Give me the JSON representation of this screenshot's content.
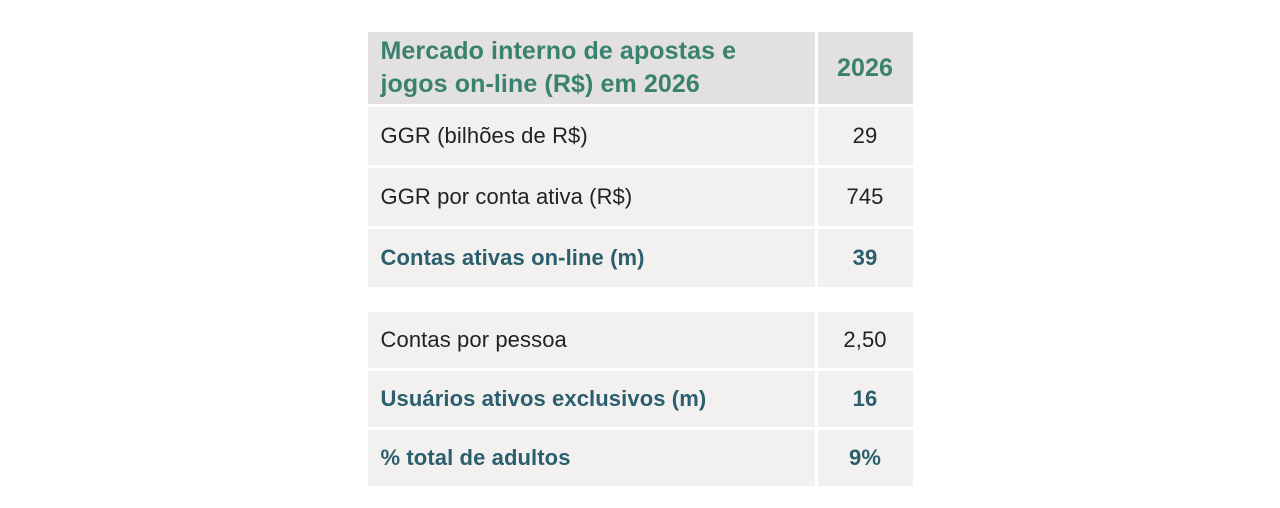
{
  "colors": {
    "accent_green": "#3a8170",
    "accent_teal": "#2b5f6e",
    "text_dark": "#212126",
    "bg_header": "#e2e1df",
    "bg_row": "#f2f1ef",
    "page_bg": "#ffffff"
  },
  "table": {
    "header": {
      "title": "Mercado interno de apostas e jogos on-line (R$) em 2026",
      "title_lines": [
        "Mercado interno de apostas e",
        "jogos on-line (R$) em 2026"
      ],
      "year": "2026"
    },
    "sections": [
      {
        "rows": [
          {
            "label": "GGR (bilhões de R$)",
            "value": "29",
            "emphasis": false
          },
          {
            "label": "GGR por conta ativa (R$)",
            "value": "745",
            "emphasis": false
          },
          {
            "label": "Contas ativas on-line (m)",
            "value": "39",
            "emphasis": true
          }
        ]
      },
      {
        "rows": [
          {
            "label": "Contas por pessoa",
            "value": "2,50",
            "emphasis": false
          },
          {
            "label": "Usuários ativos exclusivos (m)",
            "value": "16",
            "emphasis": true
          },
          {
            "label": "% total de adultos",
            "value": "9%",
            "emphasis": true
          }
        ]
      }
    ]
  },
  "chart_data": {
    "type": "table",
    "title": "Mercado interno de apostas e jogos on-line (R$) em 2026",
    "columns": [
      "Mercado interno de apostas e jogos on-line (R$) em 2026",
      "2026"
    ],
    "rows": [
      {
        "label": "GGR (bilhões de R$)",
        "value": 29
      },
      {
        "label": "GGR por conta ativa (R$)",
        "value": 745
      },
      {
        "label": "Contas ativas on-line (m)",
        "value": 39
      },
      {
        "label": "Contas por pessoa",
        "value": 2.5,
        "display": "2,50"
      },
      {
        "label": "Usuários ativos exclusivos (m)",
        "value": 16
      },
      {
        "label": "% total de adultos",
        "value": 9,
        "display": "9%"
      }
    ],
    "layout_hints": {
      "sections": [
        [
          0,
          1,
          2
        ],
        [
          3,
          4,
          5
        ]
      ],
      "emphasized_rows": [
        2,
        4,
        5
      ],
      "grid": "white gutters between flat gray cells, no borders"
    }
  }
}
